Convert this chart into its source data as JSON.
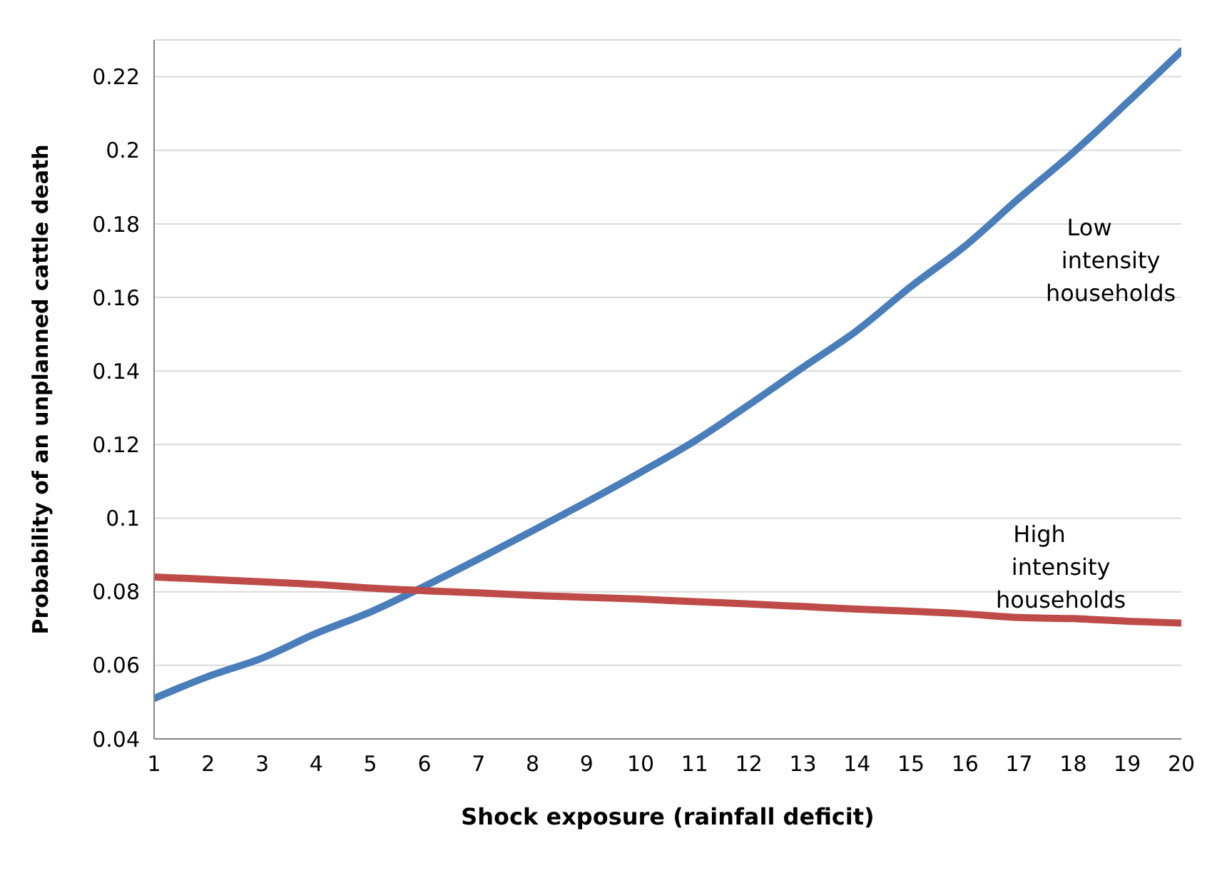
{
  "chart_data": {
    "type": "line",
    "xlabel": "Shock exposure (rainfall  deficit)",
    "ylabel": "Probability of an unplanned cattle death",
    "x": [
      1,
      2,
      3,
      4,
      5,
      6,
      7,
      8,
      9,
      10,
      11,
      12,
      13,
      14,
      15,
      16,
      17,
      18,
      19,
      20
    ],
    "series": [
      {
        "color": "#4a7ebb",
        "values": [
          0.051,
          0.057,
          0.062,
          0.0687,
          0.0745,
          0.0815,
          0.0889,
          0.0966,
          0.1044,
          0.1125,
          0.121,
          0.1308,
          0.141,
          0.151,
          0.163,
          0.174,
          0.187,
          0.1994,
          0.213,
          0.227
        ]
      },
      {
        "color": "#be4b48",
        "values": [
          0.084,
          0.0834,
          0.0827,
          0.082,
          0.081,
          0.0803,
          0.0797,
          0.079,
          0.0785,
          0.078,
          0.0773,
          0.0767,
          0.076,
          0.0753,
          0.0747,
          0.074,
          0.073,
          0.0727,
          0.072,
          0.0715
        ]
      }
    ],
    "annotations": [
      "Low intensity households",
      "High intensity households"
    ],
    "xlim": [
      1,
      20
    ],
    "xticks": [
      1,
      2,
      3,
      4,
      5,
      6,
      7,
      8,
      9,
      10,
      11,
      12,
      13,
      14,
      15,
      16,
      17,
      18,
      19,
      20
    ],
    "ylim": [
      0.04,
      0.23
    ],
    "yticks": [
      0.04,
      0.06,
      0.08,
      0.1,
      0.12,
      0.14,
      0.16,
      0.18,
      0.2,
      0.22
    ],
    "grid": "y",
    "legend": false,
    "marker": "none",
    "line_style": "solid"
  }
}
